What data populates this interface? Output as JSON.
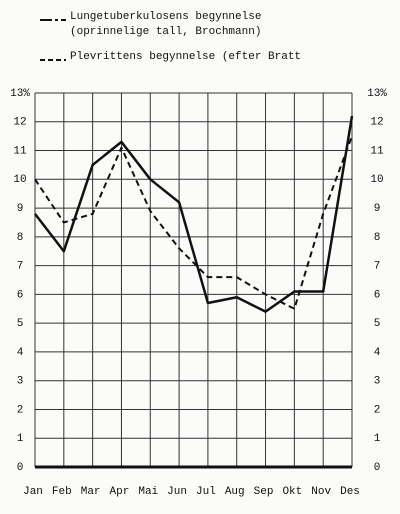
{
  "chart_data": {
    "type": "line",
    "categories": [
      "Jan",
      "Feb",
      "Mar",
      "Apr",
      "Mai",
      "Jun",
      "Jul",
      "Aug",
      "Sep",
      "Okt",
      "Nov",
      "Des"
    ],
    "series": [
      {
        "name": "Lungetuberkulosens begynnelse\n(oprinnelige tall, Brochmann)",
        "color": "#111111",
        "style": "solid",
        "values": [
          8.8,
          7.5,
          10.5,
          11.3,
          10.0,
          9.2,
          5.7,
          5.9,
          5.4,
          6.1,
          6.1,
          12.2
        ]
      },
      {
        "name": "Plevrittens begynnelse (efter Bratt",
        "color": "#111111",
        "style": "dashed",
        "values": [
          10.0,
          8.5,
          8.8,
          11.1,
          8.9,
          7.6,
          6.6,
          6.6,
          6.0,
          5.5,
          8.8,
          11.5
        ]
      }
    ],
    "ylim": [
      0,
      13
    ],
    "yticks": [
      0,
      1,
      2,
      3,
      4,
      5,
      6,
      7,
      8,
      9,
      10,
      11,
      12,
      {
        "value": 13,
        "label": "13%"
      }
    ],
    "grid": true
  }
}
